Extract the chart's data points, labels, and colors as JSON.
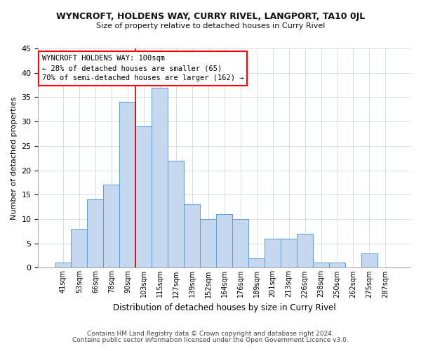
{
  "title": "WYNCROFT, HOLDENS WAY, CURRY RIVEL, LANGPORT, TA10 0JL",
  "subtitle": "Size of property relative to detached houses in Curry Rivel",
  "xlabel": "Distribution of detached houses by size in Curry Rivel",
  "ylabel": "Number of detached properties",
  "bar_labels": [
    "41sqm",
    "53sqm",
    "66sqm",
    "78sqm",
    "90sqm",
    "103sqm",
    "115sqm",
    "127sqm",
    "139sqm",
    "152sqm",
    "164sqm",
    "176sqm",
    "189sqm",
    "201sqm",
    "213sqm",
    "226sqm",
    "238sqm",
    "250sqm",
    "262sqm",
    "275sqm",
    "287sqm"
  ],
  "bar_values": [
    1,
    8,
    14,
    17,
    34,
    29,
    37,
    22,
    13,
    10,
    11,
    10,
    2,
    6,
    6,
    7,
    1,
    1,
    0,
    3,
    0
  ],
  "bar_color": "#c5d8f0",
  "bar_edge_color": "#5b9bd5",
  "vline_x": 4.5,
  "vline_color": "#cc0000",
  "ylim": [
    0,
    45
  ],
  "yticks": [
    0,
    5,
    10,
    15,
    20,
    25,
    30,
    35,
    40,
    45
  ],
  "annotation_title": "WYNCROFT HOLDENS WAY: 100sqm",
  "annotation_line1": "← 28% of detached houses are smaller (65)",
  "annotation_line2": "70% of semi-detached houses are larger (162) →",
  "footer_line1": "Contains HM Land Registry data © Crown copyright and database right 2024.",
  "footer_line2": "Contains public sector information licensed under the Open Government Licence v3.0.",
  "bg_color": "#ffffff",
  "grid_color": "#d0d8e8"
}
